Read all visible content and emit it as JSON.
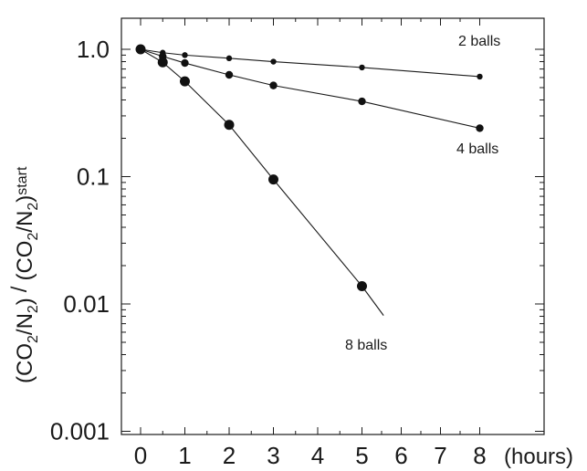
{
  "chart_data": {
    "type": "scatter",
    "title": "",
    "xlabel": "(hours)",
    "ylabel": "(CO2/N2) / (CO2/N2)start",
    "ylabel_parts": {
      "open1": "(CO",
      "sub1": "2",
      "mid1": "/N",
      "sub2": "2",
      "close1": ")",
      "slash": "/",
      "open2": "(CO",
      "sub3": "2",
      "mid2": "/N",
      "sub4": "2",
      "close2": ")",
      "sub5": "start"
    },
    "x_scale": "linear (broken: 0–5 evenly, then 6, 7, 8 compressed)",
    "y_scale": "log",
    "ylim": [
      0.001,
      1.4
    ],
    "x_ticks": [
      "0",
      "1",
      "2",
      "3",
      "4",
      "5",
      "6",
      "7",
      "8"
    ],
    "y_ticks": [
      "1.0",
      "0.1",
      "0.01",
      "0.001"
    ],
    "series": [
      {
        "name": "2 balls",
        "x": [
          0,
          0.5,
          1,
          2,
          3,
          5,
          8
        ],
        "y": [
          1.0,
          0.94,
          0.9,
          0.85,
          0.8,
          0.72,
          0.61
        ]
      },
      {
        "name": "4 balls",
        "x": [
          0,
          0.5,
          1,
          2,
          3,
          5,
          8
        ],
        "y": [
          1.0,
          0.88,
          0.78,
          0.63,
          0.52,
          0.39,
          0.24
        ]
      },
      {
        "name": "8 balls",
        "x": [
          0,
          0.5,
          1,
          2,
          3,
          5
        ],
        "y": [
          1.0,
          0.79,
          0.56,
          0.255,
          0.095,
          0.0138
        ]
      }
    ],
    "grid": false,
    "legend": "inline labels next to lines"
  }
}
